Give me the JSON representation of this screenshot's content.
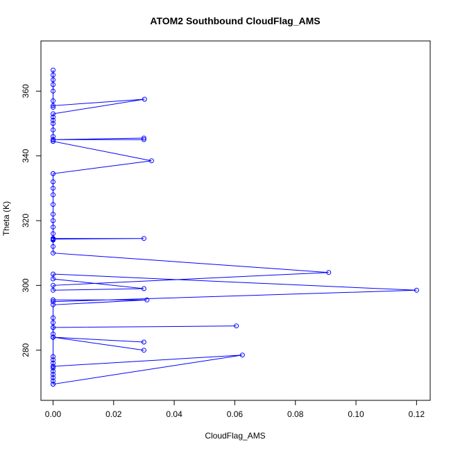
{
  "chart_data": {
    "type": "line",
    "title": "ATOM2 Southbound CloudFlag_AMS",
    "xlabel": "CloudFlag_AMS",
    "ylabel": "Theta (K)",
    "xlim": [
      -0.004,
      0.1245
    ],
    "ylim": [
      264.5,
      375.5
    ],
    "xticks": [
      0.0,
      0.02,
      0.04,
      0.06,
      0.08,
      0.1,
      0.12
    ],
    "xtick_labels": [
      "0.00",
      "0.02",
      "0.04",
      "0.06",
      "0.08",
      "0.10",
      "0.12"
    ],
    "yticks": [
      280,
      300,
      320,
      340,
      360
    ],
    "ytick_labels": [
      "280",
      "300",
      "320",
      "340",
      "360"
    ],
    "grid": false,
    "legend": "none",
    "color": "#0000ff",
    "markers": "open-circle",
    "series": [
      {
        "x": [
          0,
          0,
          0,
          0,
          0,
          0,
          0,
          0,
          0,
          0,
          0,
          0.0625,
          0,
          0,
          0.03,
          0,
          0,
          0.03,
          0,
          0,
          0,
          0.0605,
          0,
          0,
          0,
          0,
          0.031,
          0,
          0,
          0,
          0.12,
          0,
          0,
          0.03,
          0,
          0,
          0.091,
          0,
          0,
          0,
          0,
          0,
          0,
          0.03,
          0,
          0,
          0,
          0,
          0,
          0,
          0,
          0,
          0,
          0,
          0,
          0,
          0.0325,
          0,
          0,
          0.03,
          0,
          0.03,
          0,
          0,
          0,
          0,
          0,
          0,
          0,
          0,
          0,
          0.0302,
          0,
          0,
          0,
          0,
          0,
          0,
          0,
          0
        ],
        "y": [
          269.5,
          270.5,
          271.5,
          272.5,
          273.5,
          274.5,
          275,
          276,
          277,
          278,
          269.5,
          278.5,
          275,
          284,
          280,
          284,
          284,
          282.5,
          284,
          285,
          287,
          287.5,
          287,
          288.5,
          290,
          294,
          295.5,
          295.5,
          295.5,
          295,
          298.5,
          303.5,
          302,
          299,
          298.5,
          300,
          304,
          310,
          312,
          314,
          314.5,
          314.2,
          314.5,
          314.5,
          314.3,
          314.2,
          316,
          318,
          320,
          322,
          325,
          328,
          330,
          332,
          334.5,
          334.5,
          338.5,
          344.5,
          345,
          345,
          345,
          345.5,
          345,
          345,
          344.5,
          346,
          348,
          350,
          351,
          352,
          353,
          357.5,
          355.5,
          355,
          357,
          360,
          362,
          363.5,
          365,
          366.5
        ]
      }
    ]
  }
}
